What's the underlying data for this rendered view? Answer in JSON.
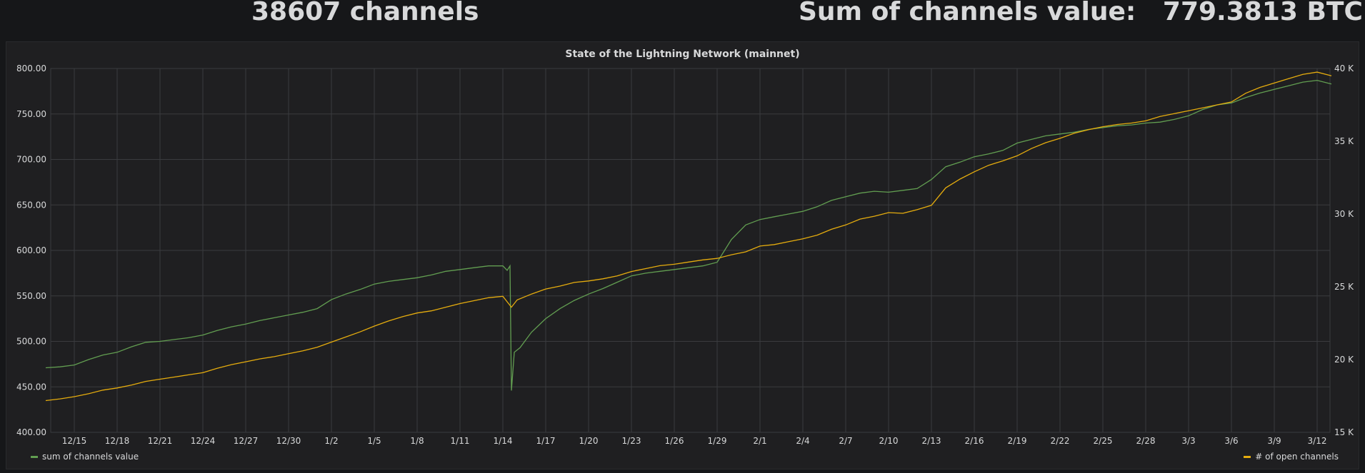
{
  "header": {
    "channels_stat": "38607 channels",
    "value_stat": "Sum of channels value:   779.3813 BTC"
  },
  "panel": {
    "title": "State of the Lightning Network (mainnet)"
  },
  "colors": {
    "sum_series": "#629e51",
    "channels_series": "#e5ac0e",
    "grid": "#3a3b3e",
    "text": "#d8d9da",
    "panel_bg": "#1f1f21",
    "page_bg": "#161719"
  },
  "chart_data": {
    "type": "line",
    "title": "State of the Lightning Network (mainnet)",
    "x_ticks": [
      "12/15",
      "12/18",
      "12/21",
      "12/24",
      "12/27",
      "12/30",
      "1/2",
      "1/5",
      "1/8",
      "1/11",
      "1/14",
      "1/17",
      "1/20",
      "1/23",
      "1/26",
      "1/29",
      "2/1",
      "2/4",
      "2/7",
      "2/10",
      "2/13",
      "2/16",
      "2/19",
      "2/22",
      "2/25",
      "2/28",
      "3/3",
      "3/6",
      "3/9",
      "3/12"
    ],
    "y_left": {
      "ticks": [
        "400.00",
        "450.00",
        "500.00",
        "550.00",
        "600.00",
        "650.00",
        "700.00",
        "750.00",
        "800.00"
      ],
      "range": [
        400,
        800
      ]
    },
    "y_right": {
      "ticks": [
        "15 K",
        "20 K",
        "25 K",
        "30 K",
        "35 K",
        "40 K"
      ],
      "range": [
        15000,
        40000
      ]
    },
    "grid": true,
    "legend_placement": "bottom",
    "series": [
      {
        "name": "sum of channels value",
        "axis": "left",
        "points": [
          [
            "12/13",
            471
          ],
          [
            "12/14",
            472
          ],
          [
            "12/15",
            474
          ],
          [
            "12/16",
            480
          ],
          [
            "12/17",
            485
          ],
          [
            "12/18",
            488
          ],
          [
            "12/19",
            494
          ],
          [
            "12/20",
            499
          ],
          [
            "12/21",
            500
          ],
          [
            "12/22",
            502
          ],
          [
            "12/23",
            504
          ],
          [
            "12/24",
            507
          ],
          [
            "12/25",
            512
          ],
          [
            "12/26",
            516
          ],
          [
            "12/27",
            519
          ],
          [
            "12/28",
            523
          ],
          [
            "12/29",
            526
          ],
          [
            "12/30",
            529
          ],
          [
            "12/31",
            532
          ],
          [
            "1/1",
            536
          ],
          [
            "1/2",
            546
          ],
          [
            "1/3",
            552
          ],
          [
            "1/4",
            557
          ],
          [
            "1/5",
            563
          ],
          [
            "1/6",
            566
          ],
          [
            "1/7",
            568
          ],
          [
            "1/8",
            570
          ],
          [
            "1/9",
            573
          ],
          [
            "1/10",
            577
          ],
          [
            "1/11",
            579
          ],
          [
            "1/12",
            581
          ],
          [
            "1/13",
            583
          ],
          [
            "1/14",
            583
          ],
          [
            "1/14.3",
            578
          ],
          [
            "1/14.5",
            583
          ],
          [
            "1/14.6",
            446
          ],
          [
            "1/14.8",
            488
          ],
          [
            "1/15.2",
            493
          ],
          [
            "1/16",
            510
          ],
          [
            "1/17",
            525
          ],
          [
            "1/18",
            536
          ],
          [
            "1/19",
            545
          ],
          [
            "1/20",
            552
          ],
          [
            "1/21",
            558
          ],
          [
            "1/22",
            565
          ],
          [
            "1/23",
            572
          ],
          [
            "1/24",
            575
          ],
          [
            "1/25",
            577
          ],
          [
            "1/26",
            579
          ],
          [
            "1/27",
            581
          ],
          [
            "1/28",
            583
          ],
          [
            "1/29",
            587
          ],
          [
            "1/30",
            612
          ],
          [
            "1/31",
            628
          ],
          [
            "2/1",
            634
          ],
          [
            "2/2",
            637
          ],
          [
            "2/3",
            640
          ],
          [
            "2/4",
            643
          ],
          [
            "2/5",
            648
          ],
          [
            "2/6",
            655
          ],
          [
            "2/7",
            659
          ],
          [
            "2/8",
            663
          ],
          [
            "2/9",
            665
          ],
          [
            "2/10",
            664
          ],
          [
            "2/11",
            666
          ],
          [
            "2/12",
            668
          ],
          [
            "2/13",
            678
          ],
          [
            "2/14",
            692
          ],
          [
            "2/15",
            697
          ],
          [
            "2/16",
            703
          ],
          [
            "2/17",
            706
          ],
          [
            "2/18",
            710
          ],
          [
            "2/19",
            718
          ],
          [
            "2/20",
            722
          ],
          [
            "2/21",
            726
          ],
          [
            "2/22",
            728
          ],
          [
            "2/23",
            730
          ],
          [
            "2/24",
            733
          ],
          [
            "2/25",
            735
          ],
          [
            "2/26",
            737
          ],
          [
            "2/27",
            738
          ],
          [
            "2/28",
            740
          ],
          [
            "3/1",
            741
          ],
          [
            "3/2",
            744
          ],
          [
            "3/3",
            748
          ],
          [
            "3/4",
            755
          ],
          [
            "3/5",
            760
          ],
          [
            "3/6",
            762
          ],
          [
            "3/7",
            768
          ],
          [
            "3/8",
            773
          ],
          [
            "3/9",
            777
          ],
          [
            "3/10",
            781
          ],
          [
            "3/11",
            785
          ],
          [
            "3/12",
            787
          ],
          [
            "3/13",
            783
          ]
        ]
      },
      {
        "name": "# of open channels",
        "axis": "right",
        "points": [
          [
            "12/13",
            17180
          ],
          [
            "12/14",
            17300
          ],
          [
            "12/15",
            17450
          ],
          [
            "12/16",
            17650
          ],
          [
            "12/17",
            17900
          ],
          [
            "12/18",
            18050
          ],
          [
            "12/19",
            18250
          ],
          [
            "12/20",
            18500
          ],
          [
            "12/21",
            18650
          ],
          [
            "12/22",
            18800
          ],
          [
            "12/23",
            18950
          ],
          [
            "12/24",
            19100
          ],
          [
            "12/25",
            19400
          ],
          [
            "12/26",
            19650
          ],
          [
            "12/27",
            19850
          ],
          [
            "12/28",
            20050
          ],
          [
            "12/29",
            20200
          ],
          [
            "12/30",
            20400
          ],
          [
            "12/31",
            20600
          ],
          [
            "1/1",
            20850
          ],
          [
            "1/2",
            21200
          ],
          [
            "1/3",
            21550
          ],
          [
            "1/4",
            21900
          ],
          [
            "1/5",
            22300
          ],
          [
            "1/6",
            22650
          ],
          [
            "1/7",
            22950
          ],
          [
            "1/8",
            23200
          ],
          [
            "1/9",
            23350
          ],
          [
            "1/10",
            23600
          ],
          [
            "1/11",
            23850
          ],
          [
            "1/12",
            24050
          ],
          [
            "1/13",
            24250
          ],
          [
            "1/14",
            24350
          ],
          [
            "1/14.6",
            23600
          ],
          [
            "1/15",
            24100
          ],
          [
            "1/16",
            24500
          ],
          [
            "1/17",
            24850
          ],
          [
            "1/18",
            25050
          ],
          [
            "1/19",
            25300
          ],
          [
            "1/20",
            25400
          ],
          [
            "1/21",
            25550
          ],
          [
            "1/22",
            25750
          ],
          [
            "1/23",
            26050
          ],
          [
            "1/24",
            26250
          ],
          [
            "1/25",
            26450
          ],
          [
            "1/26",
            26550
          ],
          [
            "1/27",
            26700
          ],
          [
            "1/28",
            26850
          ],
          [
            "1/29",
            26950
          ],
          [
            "1/30",
            27200
          ],
          [
            "1/31",
            27400
          ],
          [
            "2/1",
            27800
          ],
          [
            "2/2",
            27900
          ],
          [
            "2/3",
            28100
          ],
          [
            "2/4",
            28300
          ],
          [
            "2/5",
            28550
          ],
          [
            "2/6",
            28950
          ],
          [
            "2/7",
            29250
          ],
          [
            "2/8",
            29650
          ],
          [
            "2/9",
            29850
          ],
          [
            "2/10",
            30100
          ],
          [
            "2/11",
            30050
          ],
          [
            "2/12",
            30300
          ],
          [
            "2/13",
            30600
          ],
          [
            "2/14",
            31800
          ],
          [
            "2/15",
            32400
          ],
          [
            "2/16",
            32900
          ],
          [
            "2/17",
            33350
          ],
          [
            "2/18",
            33650
          ],
          [
            "2/19",
            34000
          ],
          [
            "2/20",
            34500
          ],
          [
            "2/21",
            34900
          ],
          [
            "2/22",
            35200
          ],
          [
            "2/23",
            35550
          ],
          [
            "2/24",
            35800
          ],
          [
            "2/25",
            36000
          ],
          [
            "2/26",
            36150
          ],
          [
            "2/27",
            36250
          ],
          [
            "2/28",
            36400
          ],
          [
            "3/1",
            36700
          ],
          [
            "3/2",
            36900
          ],
          [
            "3/3",
            37100
          ],
          [
            "3/4",
            37300
          ],
          [
            "3/5",
            37500
          ],
          [
            "3/6",
            37700
          ],
          [
            "3/7",
            38300
          ],
          [
            "3/8",
            38700
          ],
          [
            "3/9",
            39000
          ],
          [
            "3/10",
            39300
          ],
          [
            "3/11",
            39600
          ],
          [
            "3/12",
            39750
          ],
          [
            "3/13",
            39500
          ]
        ]
      }
    ]
  }
}
